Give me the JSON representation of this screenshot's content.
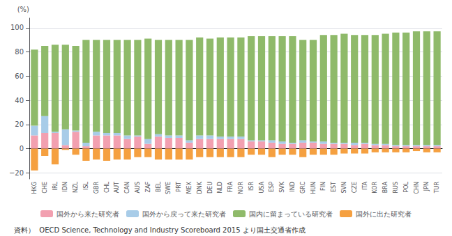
{
  "chart_data": {
    "type": "bar",
    "stacked": true,
    "ylabel": "(%)",
    "annotations": [
      "資料）  OECD Science, Technology and Industry Scoreboard 2015 より国土交通省作成"
    ],
    "categories": [
      "HKG",
      "CHE",
      "IRL",
      "IDN",
      "NZL",
      "ISL",
      "GBR",
      "CHL",
      "AUT",
      "CAN",
      "AUS",
      "ZAF",
      "BEL",
      "SWE",
      "PRT",
      "MEX",
      "DNK",
      "DEU",
      "NLD",
      "FRA",
      "NOR",
      "ISR",
      "USA",
      "ESP",
      "SVK",
      "IND",
      "GRC",
      "HUN",
      "FIN",
      "EST",
      "SVN",
      "CZE",
      "ITA",
      "KOR",
      "BRA",
      "RUS",
      "POL",
      "CHN",
      "JPN",
      "TUR"
    ],
    "series": [
      {
        "name": "国外から来た研究者",
        "color": "#f2a0b0",
        "values": [
          11,
          13,
          13,
          3,
          14,
          2,
          11,
          11,
          11,
          8,
          10,
          4,
          10,
          9,
          9,
          5,
          8,
          8,
          8,
          8,
          8,
          6,
          6,
          5,
          4,
          4,
          5,
          5,
          4,
          4,
          4,
          3,
          4,
          3,
          3,
          2,
          2,
          2,
          2,
          2
        ]
      },
      {
        "name": "国外から戻って来た研究者",
        "color": "#a8cce8",
        "values": [
          8,
          14,
          1,
          13,
          1,
          3,
          3,
          2,
          2,
          3,
          1,
          4,
          2,
          2,
          2,
          2,
          3,
          3,
          2,
          2,
          2,
          1,
          1,
          2,
          2,
          1,
          2,
          1,
          2,
          1,
          1,
          2,
          1,
          1,
          1,
          1,
          1,
          1,
          1,
          1
        ]
      },
      {
        "name": "国内に留まっている研究者",
        "color": "#8fba6a",
        "values": [
          63,
          58,
          72,
          70,
          70,
          85,
          76,
          77,
          77,
          79,
          79,
          83,
          78,
          79,
          79,
          83,
          81,
          80,
          82,
          82,
          82,
          86,
          86,
          86,
          87,
          88,
          83,
          84,
          88,
          89,
          90,
          89,
          89,
          90,
          91,
          93,
          93,
          94,
          94,
          94
        ]
      },
      {
        "name": "国外に出た研究者",
        "color": "#f5a040",
        "values": [
          -18,
          -6,
          -13,
          -1,
          -5,
          -10,
          -9,
          -10,
          -9,
          -9,
          -7,
          -7,
          -9,
          -9,
          -9,
          -9,
          -7,
          -7,
          -7,
          -7,
          -7,
          -5,
          -5,
          -7,
          -5,
          -5,
          -7,
          -5,
          -5,
          -5,
          -4,
          -4,
          -4,
          -3,
          -3,
          -3,
          -3,
          -2,
          -3,
          -3
        ]
      }
    ],
    "ylim": [
      -25,
      108
    ],
    "yticks": [
      {
        "value": -20,
        "label": "−20"
      },
      0,
      20,
      40,
      60,
      80,
      100
    ],
    "grid": true,
    "legend": "bottom"
  }
}
